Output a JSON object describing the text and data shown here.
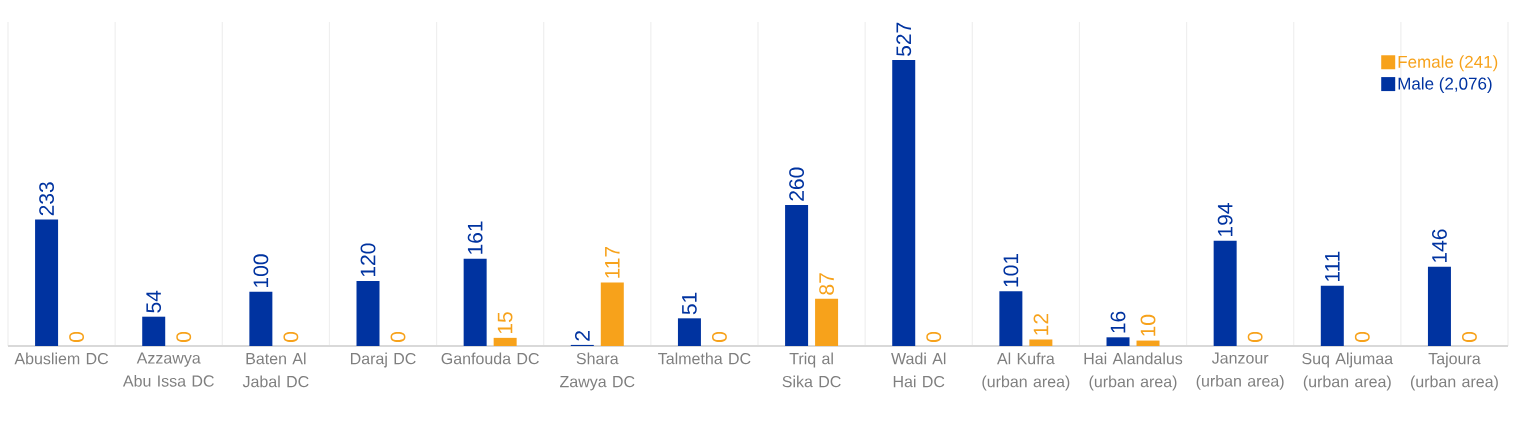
{
  "chart_data": {
    "type": "bar",
    "categories": [
      "Abusliem DC",
      "Azzawya Abu Issa DC",
      "Baten Al Jabal DC",
      "Daraj DC",
      "Ganfouda DC",
      "Shara Zawya DC",
      "Talmetha DC",
      "Triq al Sika DC",
      "Wadi Al Hai DC",
      "Al Kufra (urban area)",
      "Hai Alandalus (urban area)",
      "Janzour (urban area)",
      "Suq Aljumaa (urban area)",
      "Tajoura (urban area)"
    ],
    "series": [
      {
        "name": "Male (2,076)",
        "color": "#0033a0",
        "values": [
          233,
          54,
          100,
          120,
          161,
          2,
          51,
          260,
          527,
          101,
          16,
          194,
          111,
          146
        ]
      },
      {
        "name": "Female (241)",
        "color": "#f7a21b",
        "values": [
          0,
          0,
          0,
          0,
          15,
          117,
          0,
          87,
          0,
          12,
          10,
          0,
          0,
          0
        ]
      }
    ],
    "data_labels": true,
    "legend": "top right",
    "grid": "x"
  }
}
